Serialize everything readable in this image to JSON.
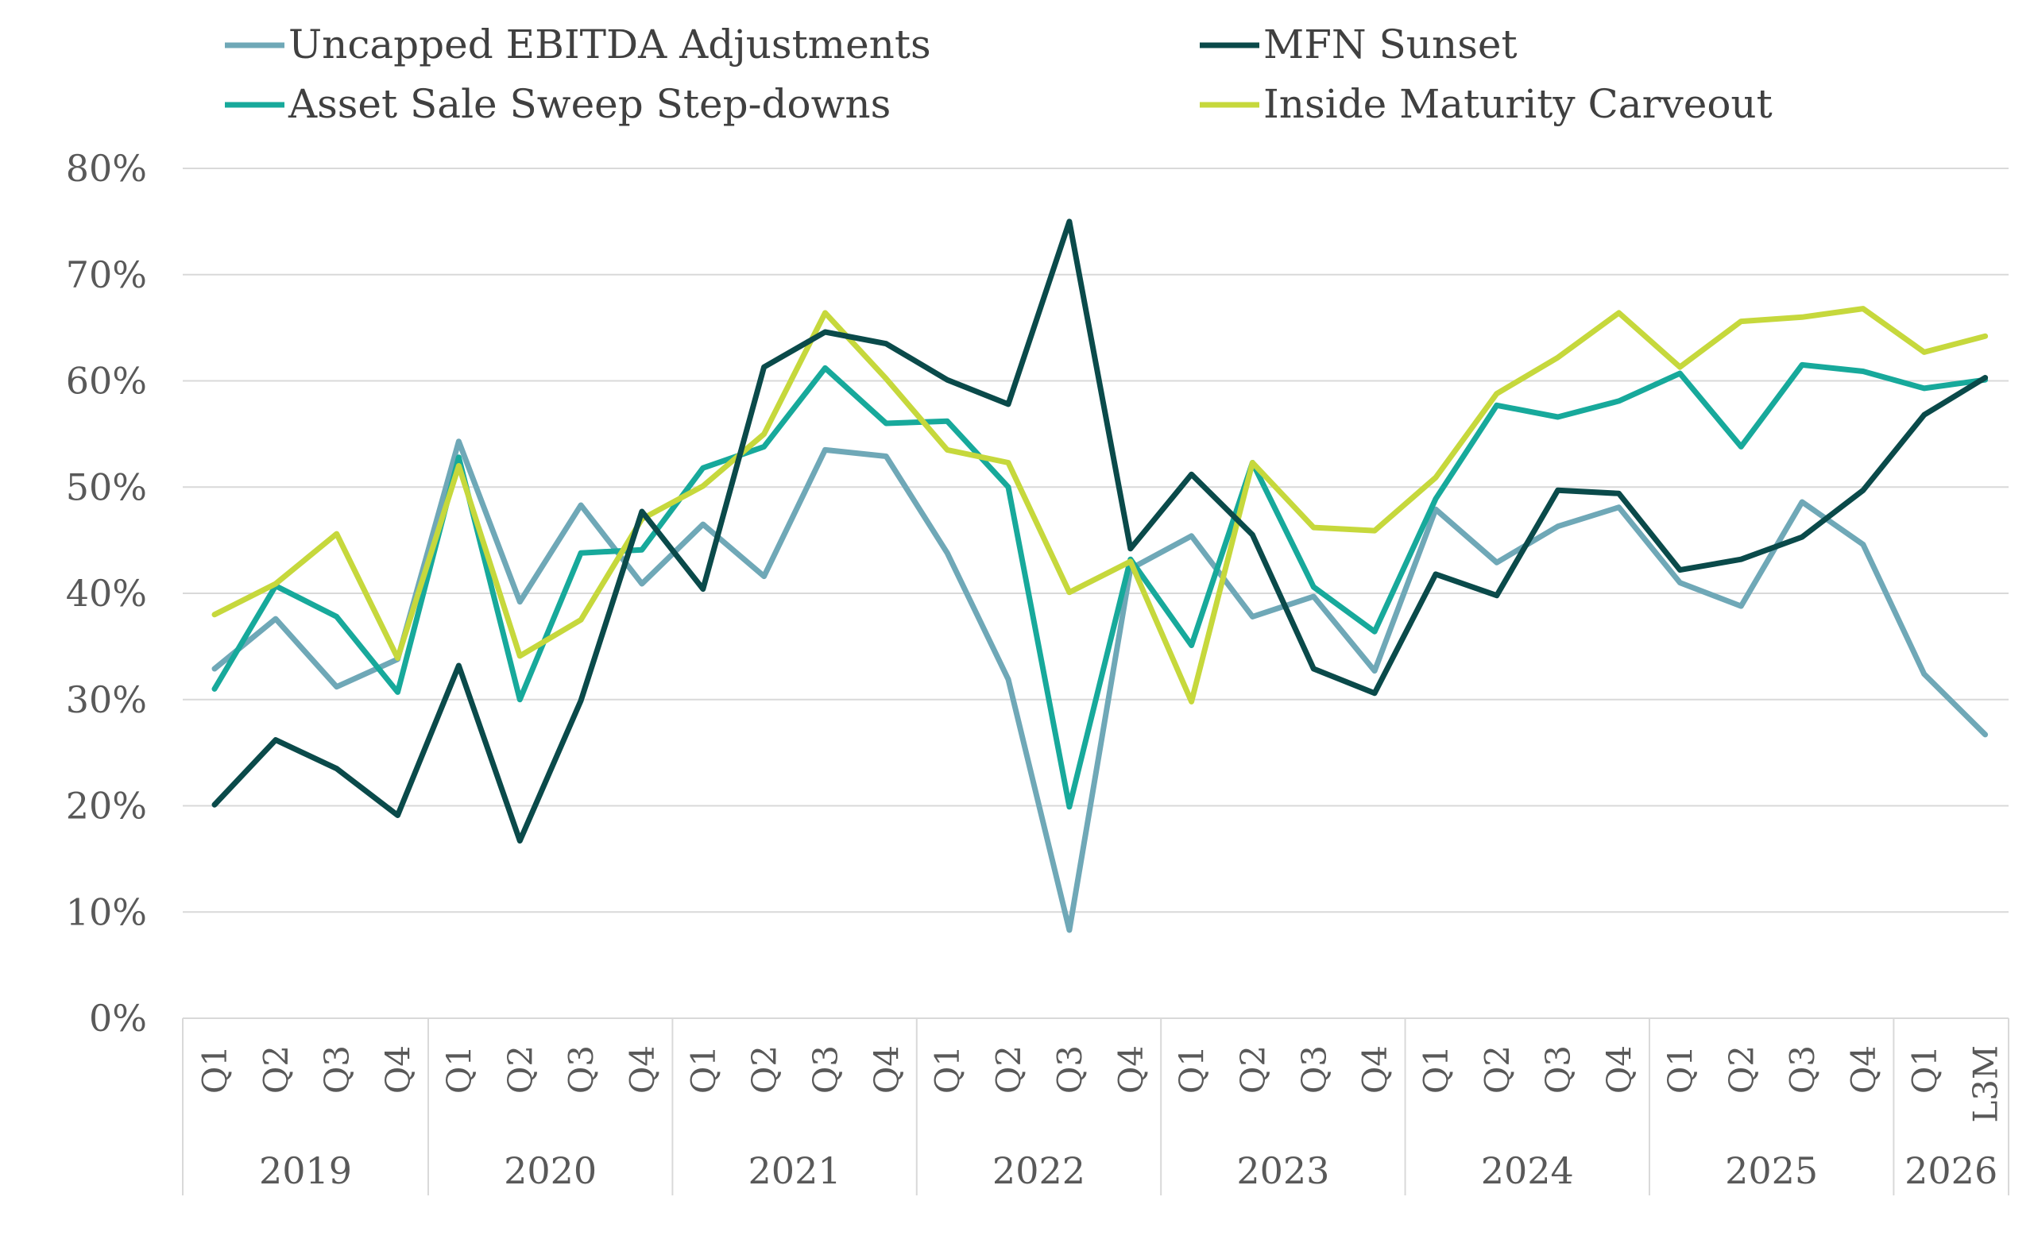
{
  "chart_data": {
    "type": "line",
    "ylim": [
      0,
      80
    ],
    "y_ticks": [
      "0%",
      "10%",
      "20%",
      "30%",
      "40%",
      "50%",
      "60%",
      "70%",
      "80%"
    ],
    "grid": "horizontal",
    "legend_position": "top",
    "groups": [
      {
        "year": "2019",
        "quarters": [
          "Q1",
          "Q2",
          "Q3",
          "Q4"
        ]
      },
      {
        "year": "2020",
        "quarters": [
          "Q1",
          "Q2",
          "Q3",
          "Q4"
        ]
      },
      {
        "year": "2021",
        "quarters": [
          "Q1",
          "Q2",
          "Q3",
          "Q4"
        ]
      },
      {
        "year": "2022",
        "quarters": [
          "Q1",
          "Q2",
          "Q3",
          "Q4"
        ]
      },
      {
        "year": "2023",
        "quarters": [
          "Q1",
          "Q2",
          "Q3",
          "Q4"
        ]
      },
      {
        "year": "2024",
        "quarters": [
          "Q1",
          "Q2",
          "Q3",
          "Q4"
        ]
      },
      {
        "year": "2025",
        "quarters": [
          "Q1",
          "Q2",
          "Q3",
          "Q4"
        ]
      },
      {
        "year": "2026",
        "quarters": [
          "Q1",
          "L3M"
        ]
      }
    ],
    "series": [
      {
        "name": "Uncapped EBITDA Adjustments",
        "color": "#6FA8B7",
        "values": [
          32.9,
          37.6,
          31.2,
          33.8,
          54.3,
          39.2,
          48.3,
          40.9,
          46.5,
          41.6,
          53.5,
          52.9,
          43.8,
          31.9,
          8.3,
          42.3,
          45.4,
          37.8,
          39.7,
          32.7,
          47.9,
          42.9,
          46.3,
          48.1,
          41.0,
          38.8,
          48.6,
          44.6,
          32.4,
          26.7
        ]
      },
      {
        "name": "MFN Sunset",
        "color": "#0A4A4A",
        "values": [
          20.1,
          26.2,
          23.5,
          19.1,
          33.2,
          16.7,
          29.9,
          47.7,
          40.4,
          61.3,
          64.6,
          63.5,
          60.1,
          57.8,
          75.0,
          44.2,
          51.2,
          45.5,
          32.9,
          30.6,
          41.8,
          39.8,
          49.7,
          49.4,
          42.2,
          43.2,
          45.3,
          49.7,
          56.8,
          60.3
        ]
      },
      {
        "name": "Asset Sale Sweep Step-downs",
        "color": "#17A99B",
        "values": [
          31.0,
          40.7,
          37.8,
          30.7,
          52.8,
          30.0,
          43.8,
          44.1,
          51.8,
          53.8,
          61.2,
          56.0,
          56.2,
          50.0,
          19.9,
          43.2,
          35.1,
          52.3,
          40.6,
          36.4,
          48.9,
          57.7,
          56.6,
          58.1,
          60.7,
          53.8,
          61.5,
          60.9,
          59.3,
          60.1
        ]
      },
      {
        "name": "Inside Maturity Carveout",
        "color": "#C6D83C",
        "values": [
          38.0,
          40.9,
          45.6,
          33.9,
          52.0,
          34.1,
          37.5,
          47.0,
          50.1,
          55.0,
          66.4,
          60.2,
          53.5,
          52.3,
          40.1,
          43.0,
          29.8,
          52.3,
          46.2,
          45.9,
          50.9,
          58.8,
          62.2,
          66.4,
          61.3,
          65.6,
          66.0,
          66.8,
          62.7,
          64.2
        ]
      }
    ]
  }
}
